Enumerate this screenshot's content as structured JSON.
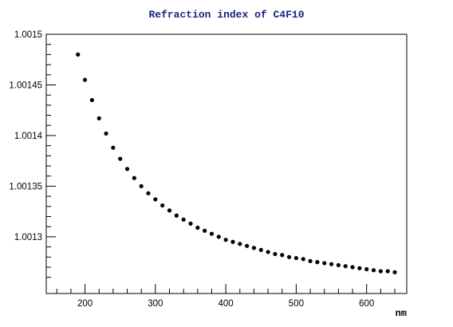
{
  "chart_data": {
    "type": "scatter",
    "title": "Refraction index of C4F10",
    "xlabel": "nm",
    "ylabel": "",
    "xlim": [
      145,
      657
    ],
    "ylim": [
      1.001244,
      1.0015
    ],
    "x_ticks": [
      200,
      300,
      400,
      500,
      600
    ],
    "y_ticks": [
      1.0013,
      1.00135,
      1.0014,
      1.00145,
      1.0015
    ],
    "x_tick_labels": [
      "200",
      "300",
      "400",
      "500",
      "600"
    ],
    "y_tick_labels": [
      "1.0013",
      "1.00135",
      "1.0014",
      "1.00145",
      "1.0015"
    ],
    "grid": false,
    "colors": {
      "title": "#1a237e",
      "points": "#000000",
      "axes": "#000000"
    },
    "series": [
      {
        "x": [
          190,
          200,
          210,
          220,
          230,
          240,
          250,
          260,
          270,
          280,
          290,
          300,
          310,
          320,
          330,
          340,
          350,
          360,
          370,
          380,
          390,
          400,
          410,
          420,
          430,
          440,
          450,
          460,
          470,
          480,
          490,
          500,
          510,
          520,
          530,
          540,
          550,
          560,
          570,
          580,
          590,
          600,
          610,
          620,
          630,
          640
        ],
        "y": [
          1.00148,
          1.001455,
          1.001435,
          1.001417,
          1.001402,
          1.001388,
          1.001377,
          1.001367,
          1.001358,
          1.00135,
          1.001343,
          1.001337,
          1.001331,
          1.001326,
          1.001321,
          1.001317,
          1.001313,
          1.001309,
          1.001306,
          1.001303,
          1.0013,
          1.001297,
          1.001295,
          1.001293,
          1.001291,
          1.001289,
          1.001287,
          1.001285,
          1.001283,
          1.001282,
          1.00128,
          1.001279,
          1.001278,
          1.001276,
          1.001275,
          1.001274,
          1.001273,
          1.001272,
          1.001271,
          1.00127,
          1.001269,
          1.001268,
          1.001267,
          1.001266,
          1.001266,
          1.001265
        ]
      }
    ]
  }
}
